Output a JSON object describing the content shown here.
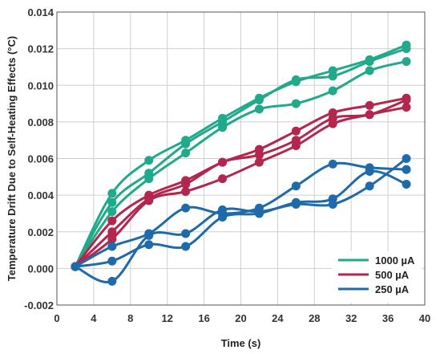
{
  "chart_data": {
    "type": "line",
    "title": "",
    "xlabel": "Time (s)",
    "ylabel": "Temperature Drift Due to Self-Heating Effects (°C)",
    "xlim": [
      0,
      40
    ],
    "ylim": [
      -0.002,
      0.014
    ],
    "x_ticks": [
      "0",
      "4",
      "8",
      "12",
      "16",
      "20",
      "24",
      "28",
      "32",
      "36",
      "40"
    ],
    "y_ticks": [
      "-0.002",
      "0.000",
      "0.002",
      "0.004",
      "0.006",
      "0.008",
      "0.010",
      "0.012",
      "0.014"
    ],
    "grid": true,
    "legend_position": "bottom-right",
    "x": [
      2,
      6,
      10,
      14,
      18,
      22,
      26,
      30,
      34,
      38
    ],
    "series": [
      {
        "name": "1000 µA",
        "color": "#20a98a",
        "values": [
          0.0001,
          0.0041,
          0.0059,
          0.007,
          0.0082,
          0.0093,
          0.0102,
          0.0108,
          0.0114,
          0.0122
        ]
      },
      {
        "name": "",
        "color": "#20a98a",
        "values": [
          0.0001,
          0.0036,
          0.0052,
          0.0068,
          0.008,
          0.0092,
          0.0103,
          0.0105,
          0.0113,
          0.012
        ]
      },
      {
        "name": "",
        "color": "#20a98a",
        "values": [
          0.0001,
          0.0031,
          0.0049,
          0.0063,
          0.0077,
          0.0087,
          0.009,
          0.0097,
          0.0108,
          0.0113
        ]
      },
      {
        "name": "500 µA",
        "color": "#b3264d",
        "values": [
          0.0001,
          0.0026,
          0.004,
          0.0048,
          0.0058,
          0.0065,
          0.0075,
          0.0085,
          0.0089,
          0.0093
        ]
      },
      {
        "name": "",
        "color": "#b3264d",
        "values": [
          0.0001,
          0.002,
          0.0038,
          0.0046,
          0.0058,
          0.0062,
          0.007,
          0.0082,
          0.0084,
          0.0092
        ]
      },
      {
        "name": "",
        "color": "#b3264d",
        "values": [
          0.0001,
          0.0016,
          0.0037,
          0.0042,
          0.0049,
          0.0058,
          0.0067,
          0.0079,
          0.0084,
          0.0088
        ]
      },
      {
        "name": "250 µA",
        "color": "#1f6aa9",
        "values": [
          0.0001,
          0.0012,
          0.0019,
          0.0033,
          0.003,
          0.0033,
          0.0045,
          0.0057,
          0.0055,
          0.0054
        ]
      },
      {
        "name": "",
        "color": "#1f6aa9",
        "values": [
          0.0001,
          0.0004,
          0.0013,
          0.0012,
          0.0028,
          0.003,
          0.0036,
          0.0038,
          0.0053,
          0.0046
        ]
      },
      {
        "name": "",
        "color": "#1f6aa9",
        "values": [
          0.0001,
          -0.0007,
          0.0018,
          0.0019,
          0.0032,
          0.0031,
          0.0035,
          0.0035,
          0.0045,
          0.006
        ]
      }
    ]
  }
}
